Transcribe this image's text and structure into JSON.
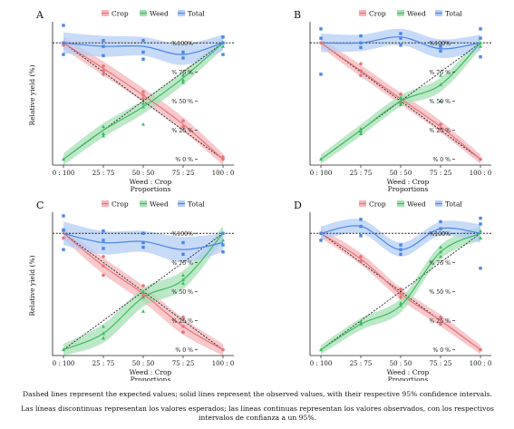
{
  "caption": {
    "english": "Dashed lines represent the expected values; solid lines represent the observed values, with their respective 95% confidence intervals.",
    "spanish": "Las líneas discontinuas representan los valores esperados; las líneas continuas representan los valores observados, con los respectivos intervalos de confianza a un 95%."
  },
  "colors": {
    "crop": "#e8747a",
    "weed": "#3dbb63",
    "total": "#4a86e8",
    "crop_band": "#f6b5b8",
    "weed_band": "#a7e0b4",
    "total_band": "#b4cdf6",
    "expected": "#222222"
  },
  "chart_data": [
    {
      "panel": "A",
      "type": "line",
      "ylabel": "Relative yield (%)",
      "xlabel": "Weed : Crop",
      "xlabel2": "Proportions",
      "categories": [
        "0 : 100",
        "25 : 75",
        "50 : 50",
        "75 : 25",
        "100 : 0"
      ],
      "yticks": [
        "% 0 %",
        "% 25 %",
        "% 50 %",
        "% 75 %",
        "%100%"
      ],
      "ylim": [
        -5,
        115
      ],
      "legend": [
        "Crop",
        "Weed",
        "Total"
      ],
      "series": [
        {
          "name": "Crop",
          "values": [
            100,
            78,
            55,
            30,
            0
          ],
          "ci": [
            5,
            6,
            6,
            6,
            5
          ],
          "points": [
            [
              0,
              100
            ],
            [
              0,
              98
            ],
            [
              1,
              80
            ],
            [
              1,
              76
            ],
            [
              1,
              73
            ],
            [
              2,
              58
            ],
            [
              2,
              55
            ],
            [
              2,
              52
            ],
            [
              3,
              33
            ],
            [
              3,
              28
            ],
            [
              4,
              0
            ],
            [
              4,
              2
            ]
          ]
        },
        {
          "name": "Weed",
          "values": [
            0,
            25,
            45,
            70,
            100
          ],
          "ci": [
            5,
            6,
            6,
            6,
            5
          ],
          "points": [
            [
              0,
              0
            ],
            [
              1,
              28
            ],
            [
              1,
              22
            ],
            [
              1,
              20
            ],
            [
              2,
              48
            ],
            [
              2,
              45
            ],
            [
              2,
              30
            ],
            [
              3,
              72
            ],
            [
              3,
              68
            ],
            [
              3,
              66
            ],
            [
              4,
              100
            ],
            [
              4,
              97
            ]
          ]
        },
        {
          "name": "Total",
          "values": [
            100,
            97,
            97,
            90,
            100
          ],
          "ci": [
            9,
            9,
            8,
            9,
            7
          ],
          "points": [
            [
              0,
              115
            ],
            [
              0,
              100
            ],
            [
              0,
              90
            ],
            [
              1,
              102
            ],
            [
              1,
              97
            ],
            [
              1,
              89
            ],
            [
              2,
              102
            ],
            [
              2,
              92
            ],
            [
              2,
              86
            ],
            [
              3,
              92
            ],
            [
              3,
              87
            ],
            [
              4,
              105
            ],
            [
              4,
              100
            ],
            [
              4,
              90
            ]
          ]
        }
      ]
    },
    {
      "panel": "B",
      "type": "line",
      "ylabel": "",
      "xlabel": "Weed : Crop",
      "xlabel2": "Proportions",
      "categories": [
        "0 : 100",
        "25 : 75",
        "50 : 50",
        "75 : 25",
        "100 : 0"
      ],
      "yticks": [
        "% 0 %",
        "% 25 %",
        "% 50 %",
        "% 75 %",
        "%100%"
      ],
      "ylim": [
        -5,
        115
      ],
      "legend": [
        "Crop",
        "Weed",
        "Total"
      ],
      "series": [
        {
          "name": "Crop",
          "values": [
            100,
            76,
            52,
            28,
            0
          ],
          "ci": [
            4,
            5,
            5,
            5,
            4
          ],
          "points": [
            [
              0,
              100
            ],
            [
              1,
              82
            ],
            [
              1,
              76
            ],
            [
              1,
              72
            ],
            [
              2,
              56
            ],
            [
              2,
              52
            ],
            [
              2,
              48
            ],
            [
              3,
              30
            ],
            [
              3,
              26
            ],
            [
              4,
              0
            ]
          ]
        },
        {
          "name": "Weed",
          "values": [
            0,
            25,
            50,
            64,
            100
          ],
          "ci": [
            4,
            5,
            5,
            6,
            5
          ],
          "points": [
            [
              0,
              0
            ],
            [
              1,
              26
            ],
            [
              1,
              24
            ],
            [
              1,
              22
            ],
            [
              2,
              53
            ],
            [
              2,
              50
            ],
            [
              2,
              47
            ],
            [
              3,
              72
            ],
            [
              3,
              64
            ],
            [
              3,
              50
            ],
            [
              4,
              100
            ],
            [
              4,
              97
            ]
          ]
        },
        {
          "name": "Total",
          "values": [
            100,
            100,
            105,
            95,
            100
          ],
          "ci": [
            8,
            7,
            7,
            8,
            7
          ],
          "points": [
            [
              0,
              112
            ],
            [
              0,
              104
            ],
            [
              0,
              73
            ],
            [
              1,
              106
            ],
            [
              1,
              100
            ],
            [
              1,
              96
            ],
            [
              2,
              108
            ],
            [
              2,
              104
            ],
            [
              2,
              98
            ],
            [
              3,
              97
            ],
            [
              3,
              93
            ],
            [
              4,
              112
            ],
            [
              4,
              104
            ],
            [
              4,
              88
            ]
          ]
        }
      ]
    },
    {
      "panel": "C",
      "type": "line",
      "ylabel": "Relative yield (%)",
      "xlabel": "Weed : Crop",
      "xlabel2": "Proportions",
      "categories": [
        "0 : 100",
        "25 : 75",
        "50 : 50",
        "75 : 25",
        "100 : 0"
      ],
      "yticks": [
        "% 0 %",
        "% 25 %",
        "% 50 %",
        "% 75 %",
        "%100%"
      ],
      "ylim": [
        -5,
        115
      ],
      "legend": [
        "Crop",
        "Weed",
        "Total"
      ],
      "series": [
        {
          "name": "Crop",
          "values": [
            100,
            72,
            48,
            20,
            0
          ],
          "ci": [
            5,
            7,
            7,
            7,
            5
          ],
          "points": [
            [
              0,
              102
            ],
            [
              0,
              96
            ],
            [
              1,
              80
            ],
            [
              1,
              72
            ],
            [
              1,
              64
            ],
            [
              2,
              55
            ],
            [
              2,
              48
            ],
            [
              2,
              46
            ],
            [
              3,
              28
            ],
            [
              3,
              20
            ],
            [
              3,
              15
            ],
            [
              4,
              0
            ]
          ]
        },
        {
          "name": "Weed",
          "values": [
            0,
            14,
            45,
            60,
            100
          ],
          "ci": [
            5,
            8,
            8,
            8,
            6
          ],
          "points": [
            [
              0,
              0
            ],
            [
              1,
              20
            ],
            [
              1,
              14
            ],
            [
              1,
              10
            ],
            [
              2,
              50
            ],
            [
              2,
              45
            ],
            [
              2,
              33
            ],
            [
              3,
              64
            ],
            [
              3,
              60
            ],
            [
              3,
              57
            ],
            [
              4,
              100
            ],
            [
              4,
              94
            ]
          ]
        },
        {
          "name": "Total",
          "values": [
            100,
            92,
            93,
            86,
            92
          ],
          "ci": [
            10,
            10,
            9,
            11,
            8
          ],
          "points": [
            [
              0,
              115
            ],
            [
              0,
              103
            ],
            [
              0,
              86
            ],
            [
              1,
              102
            ],
            [
              1,
              94
            ],
            [
              1,
              87
            ],
            [
              2,
              100
            ],
            [
              2,
              92
            ],
            [
              2,
              88
            ],
            [
              3,
              92
            ],
            [
              3,
              82
            ],
            [
              4,
              100
            ],
            [
              4,
              90
            ],
            [
              4,
              84
            ]
          ]
        }
      ]
    },
    {
      "panel": "D",
      "type": "line",
      "ylabel": "",
      "xlabel": "Weed : Crop",
      "xlabel2": "Proportions",
      "categories": [
        "0 : 100",
        "25 : 75",
        "50 : 50",
        "75 : 25",
        "100 : 0"
      ],
      "yticks": [
        "% 0 %",
        "% 25 %",
        "% 50 %",
        "% 75 %",
        "%100%"
      ],
      "ylim": [
        -5,
        115
      ],
      "legend": [
        "Crop",
        "Weed",
        "Total"
      ],
      "series": [
        {
          "name": "Crop",
          "values": [
            100,
            78,
            48,
            25,
            0
          ],
          "ci": [
            4,
            5,
            5,
            5,
            4
          ],
          "points": [
            [
              0,
              100
            ],
            [
              1,
              80
            ],
            [
              1,
              76
            ],
            [
              2,
              52
            ],
            [
              2,
              48
            ],
            [
              2,
              45
            ],
            [
              3,
              28
            ],
            [
              3,
              22
            ],
            [
              4,
              0
            ]
          ]
        },
        {
          "name": "Weed",
          "values": [
            0,
            22,
            38,
            84,
            100
          ],
          "ci": [
            4,
            5,
            6,
            6,
            6
          ],
          "points": [
            [
              0,
              0
            ],
            [
              1,
              24
            ],
            [
              1,
              22
            ],
            [
              2,
              40
            ],
            [
              2,
              38
            ],
            [
              3,
              88
            ],
            [
              3,
              84
            ],
            [
              3,
              80
            ],
            [
              4,
              102
            ],
            [
              4,
              96
            ]
          ]
        },
        {
          "name": "Total",
          "values": [
            100,
            106,
            86,
            104,
            100
          ],
          "ci": [
            6,
            6,
            6,
            6,
            8
          ],
          "points": [
            [
              0,
              100
            ],
            [
              0,
              94
            ],
            [
              1,
              112
            ],
            [
              1,
              106
            ],
            [
              1,
              98
            ],
            [
              2,
              90
            ],
            [
              2,
              86
            ],
            [
              2,
              82
            ],
            [
              3,
              110
            ],
            [
              3,
              104
            ],
            [
              4,
              113
            ],
            [
              4,
              108
            ],
            [
              4,
              70
            ]
          ]
        }
      ]
    }
  ]
}
